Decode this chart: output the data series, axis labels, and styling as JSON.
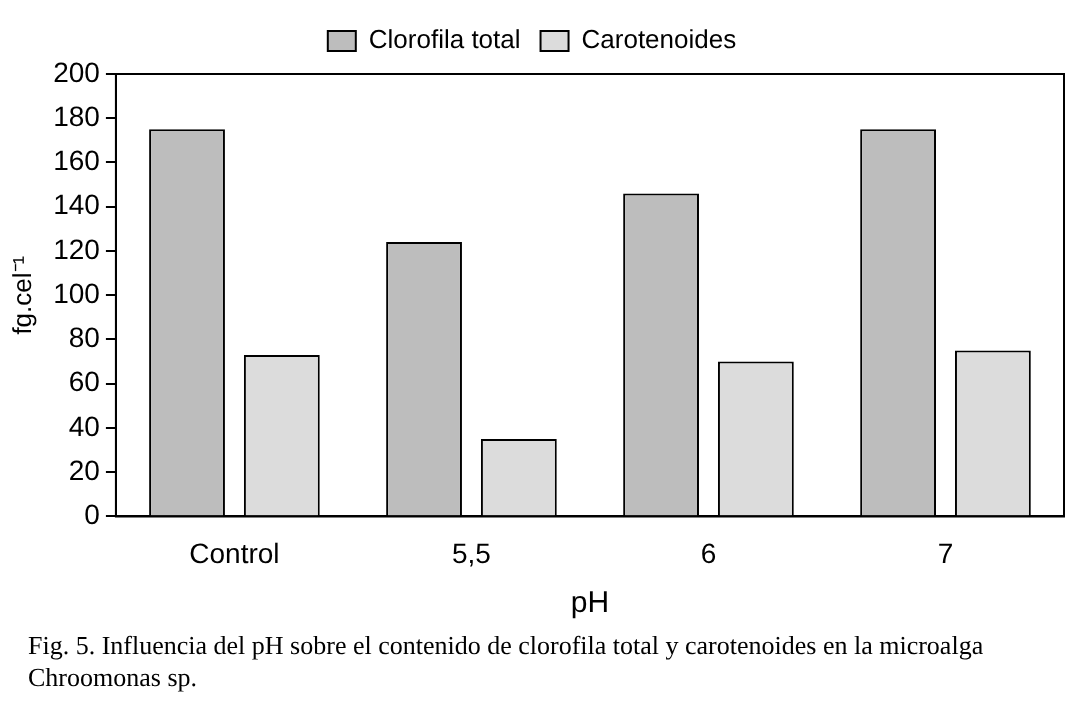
{
  "chart_data": {
    "type": "bar",
    "categories": [
      "Control",
      "5,5",
      "6",
      "7"
    ],
    "series": [
      {
        "name": "Clorofila total",
        "color": "#bdbdbd",
        "values": [
          175,
          124,
          146,
          175
        ]
      },
      {
        "name": "Carotenoides",
        "color": "#dcdcdc",
        "values": [
          73,
          35,
          70,
          75
        ]
      }
    ],
    "xlabel": "pH",
    "ylabel": "fg.cel⁻¹",
    "ylim": [
      0,
      200
    ],
    "yticks": [
      0,
      20,
      40,
      60,
      80,
      100,
      120,
      140,
      160,
      180,
      200
    ],
    "grid": false,
    "legend": "top",
    "annotations": [
      "Fig. 5. Influencia del pH sobre el contenido de clorofila total  y carotenoides en la microalga Chroomonas sp."
    ]
  }
}
